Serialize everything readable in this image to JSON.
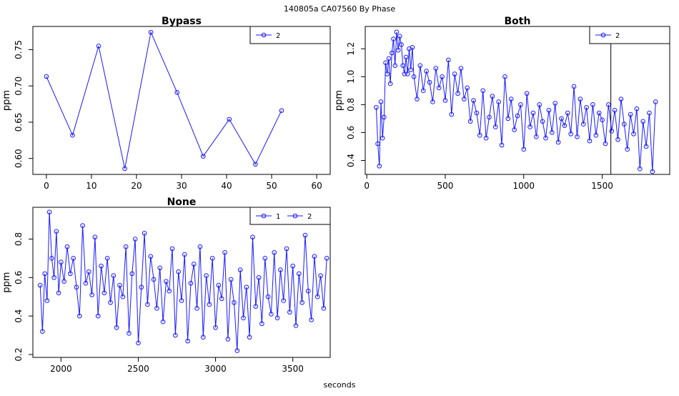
{
  "header": {
    "title": "140805a    CA07560   By Phase"
  },
  "footer": {
    "xlabel": "seconds"
  },
  "chart_data": [
    {
      "type": "line",
      "title": "Bypass",
      "ylabel": "ppm",
      "xlim": [
        -3,
        63
      ],
      "ylim": [
        0.578,
        0.782
      ],
      "xticks": [
        0,
        10,
        20,
        30,
        40,
        50,
        60
      ],
      "yticks": [
        0.6,
        0.65,
        0.7,
        0.75
      ],
      "ytick_labels": [
        "0.60",
        "0.65",
        "0.70",
        "0.75"
      ],
      "legend": [
        "2"
      ],
      "legend_position": "top-right",
      "series": [
        {
          "name": "2",
          "x": [
            0,
            5.8,
            11.6,
            17.4,
            23.2,
            29.0,
            34.8,
            40.6,
            46.4,
            52.2
          ],
          "y": [
            0.713,
            0.632,
            0.755,
            0.586,
            0.774,
            0.691,
            0.603,
            0.654,
            0.592,
            0.666
          ]
        }
      ]
    },
    {
      "type": "line",
      "title": "Both",
      "ylabel": "ppm",
      "xlim": [
        -10,
        1930
      ],
      "ylim": [
        0.3,
        1.36
      ],
      "xticks": [
        0,
        500,
        1000,
        1500
      ],
      "yticks": [
        0.4,
        0.6,
        0.8,
        1.0,
        1.2
      ],
      "ytick_labels": [
        "0.4",
        "0.6",
        "0.8",
        "1.0",
        "1.2"
      ],
      "legend": [
        "2"
      ],
      "legend_position": "top-right",
      "vline": 1555,
      "series": [
        {
          "name": "2",
          "x": [
            60,
            70,
            80,
            90,
            100,
            110,
            120,
            130,
            140,
            150,
            160,
            170,
            180,
            190,
            200,
            210,
            220,
            230,
            240,
            250,
            260,
            270,
            280,
            290,
            300,
            320,
            340,
            360,
            380,
            400,
            420,
            440,
            460,
            480,
            500,
            520,
            540,
            560,
            580,
            600,
            620,
            640,
            660,
            680,
            700,
            720,
            740,
            760,
            780,
            800,
            820,
            840,
            860,
            880,
            900,
            920,
            940,
            960,
            980,
            1000,
            1020,
            1040,
            1060,
            1080,
            1100,
            1120,
            1140,
            1160,
            1180,
            1200,
            1220,
            1240,
            1260,
            1280,
            1300,
            1320,
            1340,
            1360,
            1380,
            1400,
            1420,
            1440,
            1460,
            1480,
            1500,
            1520,
            1540,
            1560,
            1580,
            1600,
            1620,
            1640,
            1660,
            1680,
            1700,
            1720,
            1740,
            1760,
            1780,
            1800,
            1820,
            1840
          ],
          "y": [
            0.78,
            0.52,
            0.36,
            0.82,
            0.56,
            0.71,
            1.1,
            1.02,
            1.13,
            0.95,
            1.17,
            1.27,
            1.08,
            1.32,
            1.19,
            1.29,
            1.23,
            1.08,
            1.02,
            1.14,
            1.02,
            1.2,
            1.05,
            1.21,
            1.0,
            0.84,
            1.08,
            0.9,
            1.04,
            0.96,
            0.82,
            1.06,
            0.92,
            1.0,
            0.83,
            1.12,
            0.73,
            1.02,
            0.88,
            1.06,
            0.84,
            0.92,
            0.68,
            0.83,
            0.74,
            0.58,
            0.9,
            0.56,
            0.71,
            0.86,
            0.64,
            0.82,
            0.51,
            1.0,
            0.7,
            0.84,
            0.62,
            0.72,
            0.8,
            0.48,
            0.88,
            0.64,
            0.74,
            0.57,
            0.8,
            0.68,
            0.56,
            0.76,
            0.6,
            0.81,
            0.53,
            0.7,
            0.65,
            0.74,
            0.59,
            0.93,
            0.57,
            0.84,
            0.66,
            0.78,
            0.54,
            0.8,
            0.58,
            0.74,
            0.69,
            0.52,
            0.8,
            0.61,
            0.76,
            0.55,
            0.84,
            0.66,
            0.48,
            0.73,
            0.59,
            0.77,
            0.34,
            0.68,
            0.5,
            0.74,
            0.32,
            0.82
          ]
        }
      ]
    },
    {
      "type": "line",
      "title": "None",
      "ylabel": "ppm",
      "xlim": [
        1818,
        3742
      ],
      "ylim": [
        0.185,
        0.965
      ],
      "xticks": [
        2000,
        2500,
        3000,
        3500
      ],
      "yticks": [
        0.2,
        0.4,
        0.6,
        0.8
      ],
      "ytick_labels": [
        "0.2",
        "0.4",
        "0.6",
        "0.8"
      ],
      "legend": [
        "1",
        "2"
      ],
      "legend_position": "top-right",
      "series": [
        {
          "name": "1",
          "x": [
            1865,
            1880,
            1895,
            1910,
            1925,
            1940,
            1955,
            1970,
            1985,
            2000,
            2020,
            2040,
            2060,
            2080,
            2100,
            2120,
            2140,
            2160,
            2180,
            2200,
            2220,
            2240,
            2260,
            2280,
            2300,
            2320,
            2340,
            2360,
            2380,
            2400,
            2420,
            2440,
            2460,
            2480,
            2500,
            2520,
            2540,
            2560,
            2580,
            2600,
            2620,
            2640,
            2660,
            2680,
            2700,
            2720,
            2740,
            2760,
            2780,
            2800,
            2820,
            2840,
            2860,
            2880,
            2900,
            2920,
            2940,
            2960,
            2980,
            3000,
            3020,
            3040,
            3060,
            3080,
            3100,
            3120,
            3140,
            3160,
            3180,
            3200,
            3220,
            3240,
            3260,
            3280,
            3300,
            3320,
            3340,
            3360,
            3380,
            3400,
            3420,
            3440,
            3460,
            3480,
            3500,
            3520,
            3540,
            3560,
            3580,
            3600,
            3620,
            3640,
            3660,
            3680,
            3700,
            3720
          ],
          "y": [
            0.56,
            0.32,
            0.62,
            0.48,
            0.94,
            0.7,
            0.6,
            0.84,
            0.52,
            0.68,
            0.58,
            0.76,
            0.62,
            0.7,
            0.55,
            0.4,
            0.87,
            0.57,
            0.63,
            0.51,
            0.81,
            0.4,
            0.66,
            0.52,
            0.7,
            0.47,
            0.61,
            0.34,
            0.56,
            0.5,
            0.76,
            0.31,
            0.62,
            0.8,
            0.26,
            0.55,
            0.83,
            0.46,
            0.71,
            0.59,
            0.44,
            0.65,
            0.37,
            0.58,
            0.53,
            0.75,
            0.3,
            0.63,
            0.48,
            0.72,
            0.27,
            0.57,
            0.67,
            0.44,
            0.76,
            0.29,
            0.61,
            0.46,
            0.7,
            0.34,
            0.56,
            0.49,
            0.73,
            0.28,
            0.59,
            0.47,
            0.22,
            0.64,
            0.39,
            0.55,
            0.29,
            0.81,
            0.45,
            0.6,
            0.36,
            0.7,
            0.5,
            0.41,
            0.73,
            0.39,
            0.64,
            0.48,
            0.75,
            0.42,
            0.66,
            0.35,
            0.62,
            0.47,
            0.82,
            0.53,
            0.38,
            0.71,
            0.5,
            0.61,
            0.44,
            0.7
          ]
        },
        {
          "name": "2",
          "x": [],
          "y": []
        }
      ]
    }
  ]
}
